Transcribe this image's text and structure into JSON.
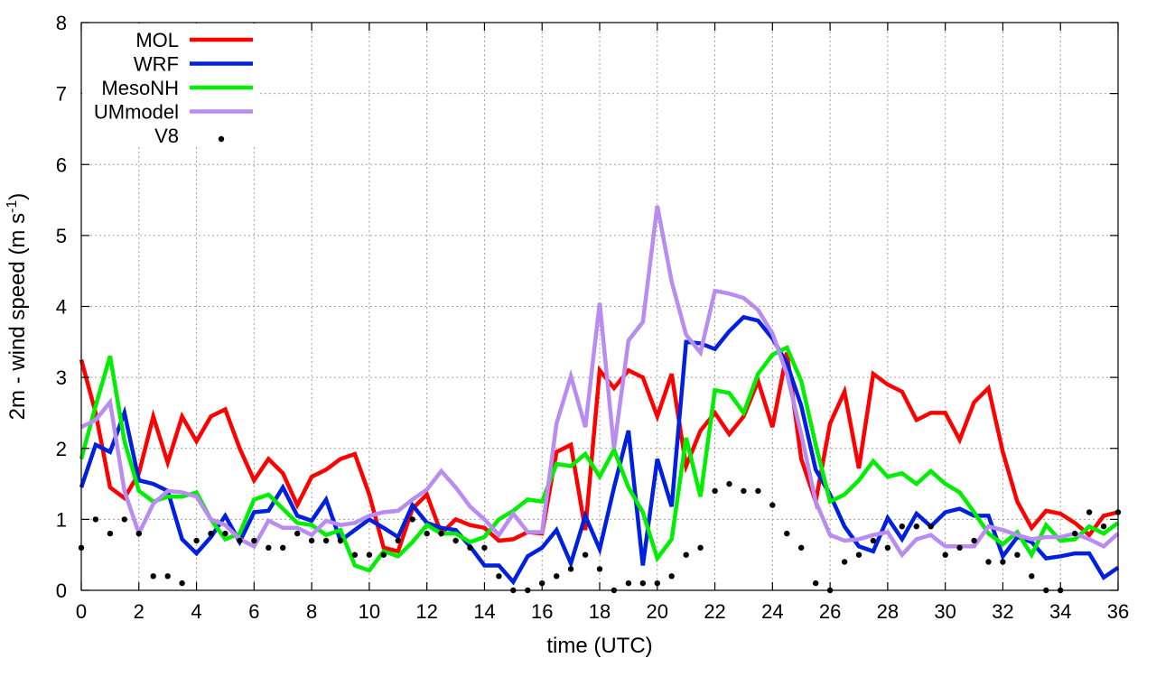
{
  "chart_data": {
    "type": "line",
    "xlabel": "time (UTC)",
    "ylabel": "2m - wind speed  (m s",
    "ylabel_sup": "-1",
    "ylabel_end": ")",
    "xlim": [
      0,
      36
    ],
    "ylim": [
      0,
      8
    ],
    "xticks": [
      0,
      2,
      4,
      6,
      8,
      10,
      12,
      14,
      16,
      18,
      20,
      22,
      24,
      26,
      28,
      30,
      32,
      34,
      36
    ],
    "yticks": [
      0,
      1,
      2,
      3,
      4,
      5,
      6,
      7,
      8
    ],
    "grid": true,
    "legend_position": "top-left",
    "series": [
      {
        "name": "MOL",
        "color": "#ff0000",
        "style": "line",
        "x": [
          0,
          0.5,
          1,
          1.5,
          2,
          2.5,
          3,
          3.5,
          4,
          4.5,
          5,
          5.5,
          6,
          6.5,
          7,
          7.5,
          8,
          8.5,
          9,
          9.5,
          10,
          10.5,
          11,
          11.5,
          12,
          12.5,
          13,
          13.5,
          14,
          14.5,
          15,
          15.5,
          16,
          16.5,
          17,
          17.5,
          18,
          18.5,
          19,
          19.5,
          20,
          20.5,
          21,
          21.5,
          22,
          22.5,
          23,
          23.5,
          24,
          24.5,
          25,
          25.5,
          26,
          26.5,
          27,
          27.5,
          28,
          28.5,
          29,
          29.5,
          30,
          30.5,
          31,
          31.5,
          32,
          32.5,
          33,
          33.5,
          34,
          34.5,
          35,
          35.5,
          36
        ],
        "y": [
          3.25,
          2.5,
          1.45,
          1.3,
          1.65,
          2.45,
          1.8,
          2.45,
          2.1,
          2.45,
          2.55,
          2.0,
          1.55,
          1.85,
          1.65,
          1.2,
          1.6,
          1.7,
          1.85,
          1.92,
          1.35,
          0.6,
          0.55,
          1.15,
          1.35,
          0.8,
          1.0,
          0.92,
          0.88,
          0.7,
          0.72,
          0.82,
          0.8,
          1.95,
          2.05,
          0.85,
          3.1,
          2.85,
          3.1,
          3.0,
          2.45,
          3.05,
          1.75,
          2.25,
          2.5,
          2.2,
          2.45,
          2.95,
          2.3,
          3.35,
          1.85,
          1.25,
          2.35,
          2.8,
          1.72,
          3.05,
          2.9,
          2.8,
          2.4,
          2.5,
          2.5,
          2.12,
          2.65,
          2.85,
          1.95,
          1.25,
          0.88,
          1.12,
          1.08,
          0.95,
          0.78,
          1.05,
          1.1
        ]
      },
      {
        "name": "WRF",
        "color": "#0020e0",
        "style": "line",
        "x": [
          0,
          0.5,
          1,
          1.5,
          2,
          2.5,
          3,
          3.5,
          4,
          4.5,
          5,
          5.5,
          6,
          6.5,
          7,
          7.5,
          8,
          8.5,
          9,
          9.5,
          10,
          10.5,
          11,
          11.5,
          12,
          12.5,
          13,
          13.5,
          14,
          14.5,
          15,
          15.5,
          16,
          16.5,
          17,
          17.5,
          18,
          18.5,
          19,
          19.5,
          20,
          20.5,
          21,
          21.5,
          22,
          22.5,
          23,
          23.5,
          24,
          24.5,
          25,
          25.5,
          26,
          26.5,
          27,
          27.5,
          28,
          28.5,
          29,
          29.5,
          30,
          30.5,
          31,
          31.5,
          32,
          32.5,
          33,
          33.5,
          34,
          34.5,
          35,
          35.5,
          36
        ],
        "y": [
          1.45,
          2.05,
          1.95,
          2.5,
          1.55,
          1.5,
          1.4,
          0.72,
          0.52,
          0.75,
          1.05,
          0.68,
          1.1,
          1.12,
          1.45,
          1.05,
          0.98,
          1.28,
          0.7,
          0.85,
          1.0,
          0.88,
          0.75,
          1.2,
          0.95,
          0.88,
          0.85,
          0.62,
          0.35,
          0.35,
          0.12,
          0.48,
          0.6,
          0.85,
          0.38,
          1.05,
          0.58,
          1.45,
          2.25,
          0.35,
          1.85,
          1.18,
          3.5,
          3.48,
          3.4,
          3.65,
          3.85,
          3.8,
          3.55,
          3.2,
          2.6,
          1.7,
          1.35,
          0.9,
          0.62,
          0.55,
          1.02,
          0.72,
          1.08,
          0.9,
          1.1,
          1.15,
          1.05,
          1.05,
          0.48,
          0.75,
          0.68,
          0.45,
          0.48,
          0.52,
          0.52,
          0.18,
          0.32
        ]
      },
      {
        "name": "MesoNH",
        "color": "#00ee00",
        "style": "line",
        "x": [
          0,
          0.5,
          1,
          1.5,
          2,
          2.5,
          3,
          3.5,
          4,
          4.5,
          5,
          5.5,
          6,
          6.5,
          7,
          7.5,
          8,
          8.5,
          9,
          9.5,
          10,
          10.5,
          11,
          11.5,
          12,
          12.5,
          13,
          13.5,
          14,
          14.5,
          15,
          15.5,
          16,
          16.5,
          17,
          17.5,
          18,
          18.5,
          19,
          19.5,
          20,
          20.5,
          21,
          21.5,
          22,
          22.5,
          23,
          23.5,
          24,
          24.5,
          25,
          25.5,
          26,
          26.5,
          27,
          27.5,
          28,
          28.5,
          29,
          29.5,
          30,
          30.5,
          31,
          31.5,
          32,
          32.5,
          33,
          33.5,
          34,
          34.5,
          35,
          35.5,
          36
        ],
        "y": [
          1.85,
          2.6,
          3.3,
          2.1,
          1.4,
          1.25,
          1.32,
          1.32,
          1.38,
          1.0,
          0.72,
          0.8,
          1.28,
          1.35,
          1.15,
          0.95,
          0.92,
          0.78,
          0.85,
          0.35,
          0.28,
          0.55,
          0.48,
          0.68,
          0.92,
          0.8,
          0.8,
          0.68,
          0.75,
          1.0,
          1.12,
          1.28,
          1.25,
          1.78,
          1.75,
          1.92,
          1.6,
          1.98,
          1.45,
          1.1,
          0.45,
          0.72,
          2.15,
          1.32,
          2.82,
          2.78,
          2.5,
          3.05,
          3.32,
          3.42,
          2.95,
          2.05,
          1.25,
          1.35,
          1.55,
          1.82,
          1.6,
          1.65,
          1.5,
          1.68,
          1.5,
          1.38,
          1.1,
          0.8,
          0.65,
          0.82,
          0.5,
          0.92,
          0.7,
          0.72,
          0.9,
          0.8,
          0.95
        ]
      },
      {
        "name": "UMmodel",
        "color": "#b88cf0",
        "style": "line",
        "x": [
          0,
          0.5,
          1,
          1.5,
          2,
          2.5,
          3,
          3.5,
          4,
          4.5,
          5,
          5.5,
          6,
          6.5,
          7,
          7.5,
          8,
          8.5,
          9,
          9.5,
          10,
          10.5,
          11,
          11.5,
          12,
          12.5,
          13,
          13.5,
          14,
          14.5,
          15,
          15.5,
          16,
          16.5,
          17,
          17.5,
          18,
          18.5,
          19,
          19.5,
          20,
          20.5,
          21,
          21.5,
          22,
          22.5,
          23,
          23.5,
          24,
          24.5,
          25,
          25.5,
          26,
          26.5,
          27,
          27.5,
          28,
          28.5,
          29,
          29.5,
          30,
          30.5,
          31,
          31.5,
          32,
          32.5,
          33,
          33.5,
          34,
          34.5,
          35,
          35.5,
          36
        ],
        "y": [
          2.3,
          2.4,
          2.65,
          1.4,
          0.8,
          1.22,
          1.4,
          1.38,
          1.32,
          1.0,
          0.92,
          0.72,
          0.62,
          0.98,
          0.88,
          0.88,
          0.78,
          0.98,
          0.92,
          0.95,
          1.05,
          1.1,
          1.12,
          1.28,
          1.42,
          1.68,
          1.45,
          1.18,
          1.0,
          0.78,
          1.08,
          0.82,
          0.82,
          2.35,
          3.02,
          2.3,
          4.05,
          2.0,
          3.52,
          3.78,
          5.42,
          4.35,
          3.6,
          3.35,
          4.22,
          4.18,
          4.12,
          3.95,
          3.62,
          3.05,
          2.2,
          1.25,
          0.78,
          0.7,
          0.72,
          0.78,
          0.82,
          0.5,
          0.72,
          0.78,
          0.62,
          0.62,
          0.62,
          0.9,
          0.85,
          0.78,
          0.72,
          0.75,
          0.75,
          0.8,
          0.72,
          0.62,
          0.8
        ]
      },
      {
        "name": "V8",
        "color": "#000000",
        "style": "points",
        "x": [
          0,
          0.5,
          1,
          1.5,
          2,
          2.5,
          3,
          3.5,
          4,
          4.5,
          5,
          5.5,
          6,
          6.5,
          7,
          7.5,
          8,
          8.5,
          9,
          9.5,
          10,
          10.5,
          11,
          11.5,
          12,
          12.5,
          13,
          13.5,
          14,
          14.5,
          15,
          15.5,
          16,
          16.5,
          17,
          17.5,
          18,
          18.5,
          19,
          19.5,
          20,
          20.5,
          21,
          21.5,
          22,
          22.5,
          23,
          23.5,
          24,
          24.5,
          25,
          25.5,
          26,
          26.5,
          27,
          27.5,
          28,
          28.5,
          29,
          29.5,
          30,
          30.5,
          31,
          31.5,
          32,
          32.5,
          33,
          33.5,
          34,
          34.5,
          35,
          35.5,
          36
        ],
        "y": [
          0.6,
          1.0,
          0.8,
          1.0,
          0.8,
          0.2,
          0.2,
          0.1,
          0.7,
          0.8,
          0.8,
          0.7,
          0.7,
          0.6,
          0.6,
          0.8,
          0.7,
          0.7,
          0.7,
          0.5,
          0.5,
          0.5,
          0.7,
          1.0,
          0.8,
          0.8,
          0.7,
          0.6,
          0.6,
          0.2,
          0.0,
          0.0,
          0.1,
          0.2,
          0.3,
          0.5,
          0.3,
          0.0,
          0.1,
          0.1,
          0.1,
          0.2,
          0.5,
          0.6,
          1.4,
          1.5,
          1.4,
          1.4,
          1.2,
          0.8,
          0.6,
          0.1,
          0.0,
          0.4,
          0.5,
          0.7,
          0.6,
          0.9,
          0.9,
          0.9,
          0.5,
          0.6,
          0.7,
          0.4,
          0.4,
          0.5,
          0.2,
          0.0,
          0.0,
          0.8,
          1.1,
          0.9,
          1.1
        ]
      }
    ]
  }
}
